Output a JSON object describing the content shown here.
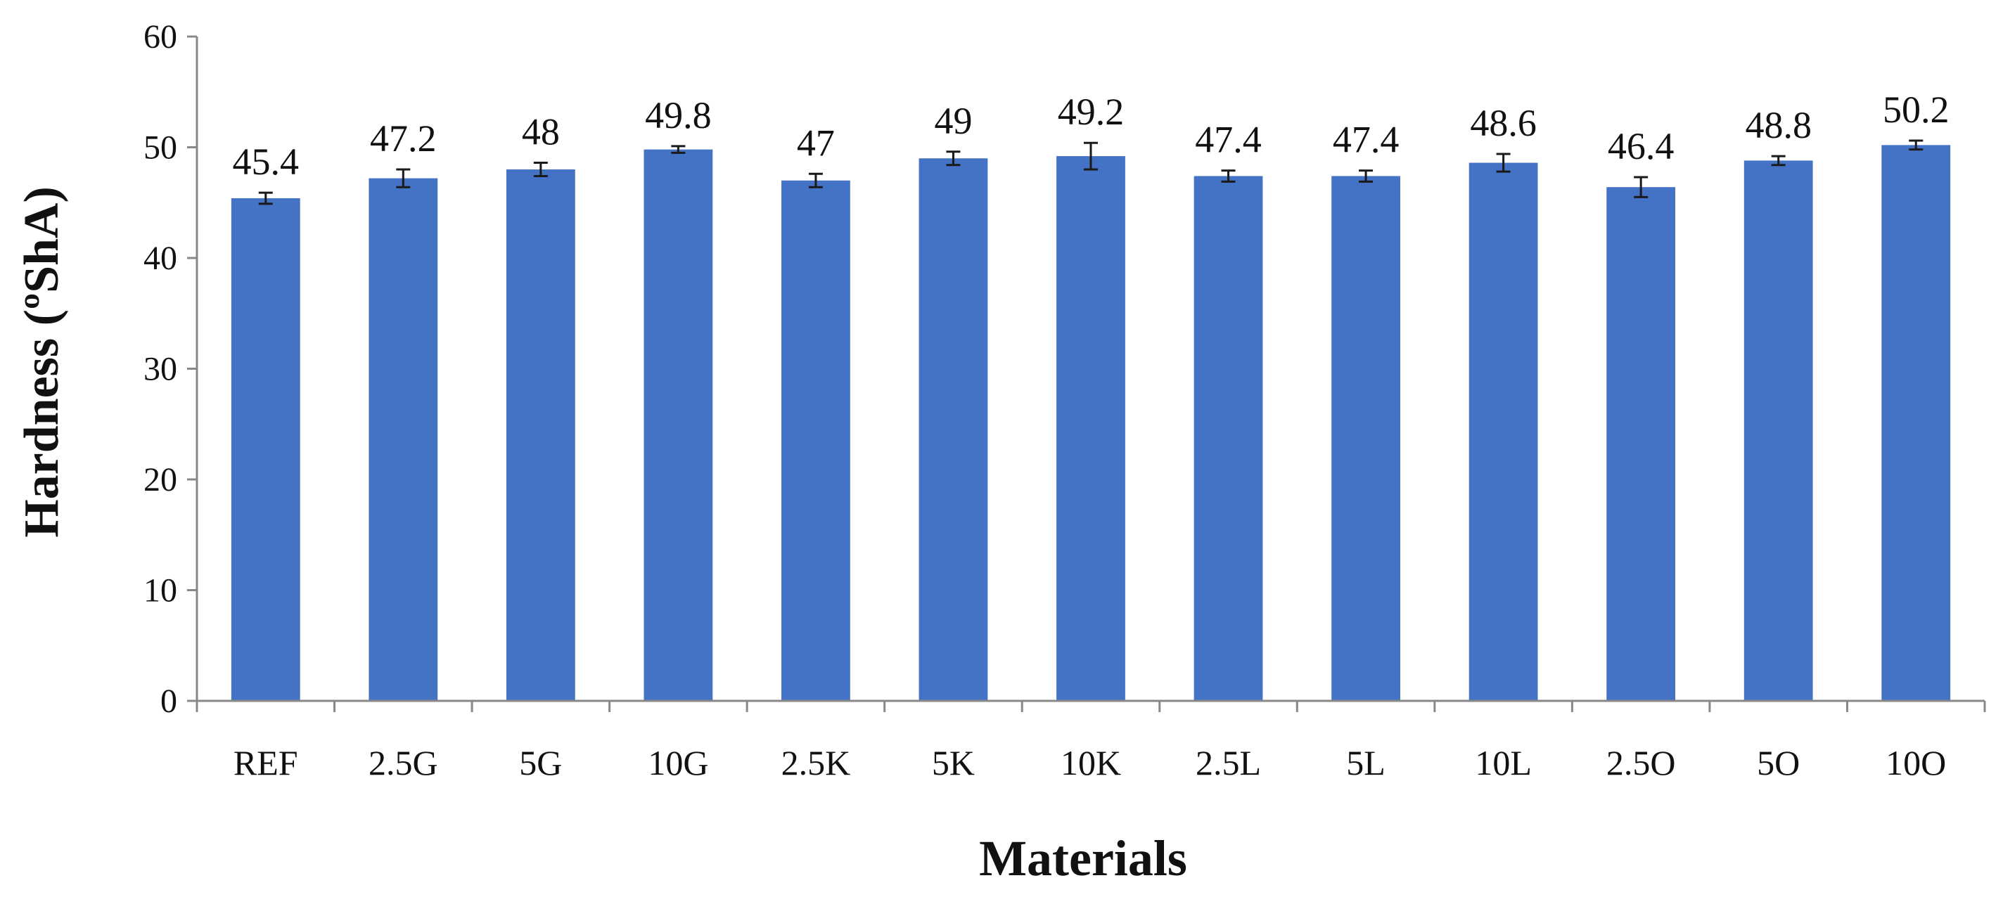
{
  "chart_data": {
    "type": "bar",
    "categories": [
      "REF",
      "2.5G",
      "5G",
      "10G",
      "2.5K",
      "5K",
      "10K",
      "2.5L",
      "5L",
      "10L",
      "2.5O",
      "5O",
      "10O"
    ],
    "values": [
      45.4,
      47.2,
      48,
      49.8,
      47,
      49,
      49.2,
      47.4,
      47.4,
      48.6,
      46.4,
      48.8,
      50.2
    ],
    "value_labels": [
      "45.4",
      "47.2",
      "48",
      "49.8",
      "47",
      "49",
      "49.2",
      "47.4",
      "47.4",
      "48.6",
      "46.4",
      "48.8",
      "50.2"
    ],
    "error": [
      0.5,
      0.8,
      0.6,
      0.3,
      0.6,
      0.6,
      1.2,
      0.5,
      0.5,
      0.8,
      0.9,
      0.4,
      0.4
    ],
    "xlabel": "Materials",
    "ylabel": "Hardness (ºShA)",
    "ylim": [
      0,
      60
    ],
    "yticks": [
      "0",
      "10",
      "20",
      "30",
      "40",
      "50",
      "60"
    ],
    "grid": false,
    "bar_color": "#4472C4"
  }
}
